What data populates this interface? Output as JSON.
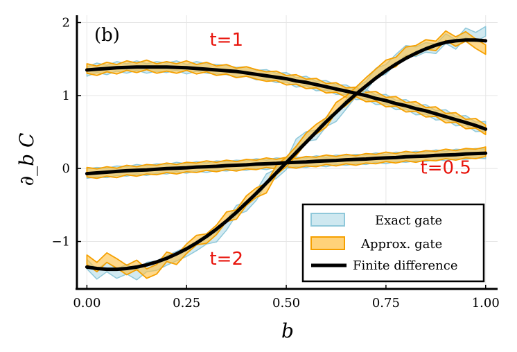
{
  "chart_data": {
    "type": "line",
    "panel_label": "(b)",
    "xlabel": "b",
    "ylabel": "∂_b C",
    "xlim": [
      -0.025,
      1.03
    ],
    "ylim": [
      -1.65,
      2.1
    ],
    "x_ticks": [
      0,
      0.25,
      0.5,
      0.75,
      1.0
    ],
    "x_tick_labels": [
      "0.00",
      "0.25",
      "0.50",
      "0.75",
      "1.00"
    ],
    "y_ticks": [
      -1,
      0,
      1,
      2
    ],
    "y_tick_labels": [
      "−1",
      "0",
      "1",
      "2"
    ],
    "grid": true,
    "legend_position": "bottom-right",
    "colors": {
      "exact_fill": "#add8e6",
      "exact_line": "#8fc8da",
      "approx_fill": "#ffbf40",
      "approx_line": "#f5a000",
      "finite_line": "#000000",
      "annotation": "#e8140c"
    },
    "legend": [
      {
        "label": "Exact gate",
        "kind": "band-exact"
      },
      {
        "label": "Approx. gate",
        "kind": "band-approx"
      },
      {
        "label": "Finite difference",
        "kind": "line"
      }
    ],
    "annotations": [
      {
        "text": "t=1",
        "x": 0.35,
        "y": 1.68
      },
      {
        "text": "t=0.5",
        "x": 0.9,
        "y": -0.07
      },
      {
        "text": "t=2",
        "x": 0.35,
        "y": -1.32
      }
    ],
    "x": [
      0.0,
      0.025,
      0.05,
      0.075,
      0.1,
      0.125,
      0.15,
      0.175,
      0.2,
      0.225,
      0.25,
      0.275,
      0.3,
      0.325,
      0.35,
      0.375,
      0.4,
      0.425,
      0.45,
      0.475,
      0.5,
      0.525,
      0.55,
      0.575,
      0.6,
      0.625,
      0.65,
      0.675,
      0.7,
      0.725,
      0.75,
      0.775,
      0.8,
      0.825,
      0.85,
      0.875,
      0.9,
      0.925,
      0.95,
      0.975,
      1.0
    ],
    "series": [
      {
        "name": "t=1 Finite difference",
        "values": [
          1.35,
          1.36,
          1.37,
          1.38,
          1.385,
          1.39,
          1.39,
          1.39,
          1.39,
          1.385,
          1.38,
          1.37,
          1.36,
          1.35,
          1.34,
          1.33,
          1.31,
          1.29,
          1.27,
          1.25,
          1.23,
          1.2,
          1.18,
          1.15,
          1.12,
          1.09,
          1.06,
          1.03,
          1.0,
          0.96,
          0.93,
          0.89,
          0.86,
          0.82,
          0.79,
          0.75,
          0.71,
          0.67,
          0.63,
          0.59,
          0.54
        ]
      },
      {
        "name": "t=1 Exact gate",
        "values": [
          1.33,
          1.38,
          1.35,
          1.4,
          1.37,
          1.41,
          1.37,
          1.4,
          1.38,
          1.41,
          1.36,
          1.4,
          1.37,
          1.36,
          1.35,
          1.32,
          1.33,
          1.28,
          1.29,
          1.24,
          1.25,
          1.18,
          1.2,
          1.13,
          1.14,
          1.08,
          1.08,
          1.01,
          1.02,
          0.94,
          0.95,
          0.87,
          0.88,
          0.8,
          0.81,
          0.73,
          0.74,
          0.65,
          0.66,
          0.57,
          0.58
        ]
      },
      {
        "name": "t=1 Approx. gate",
        "values": [
          1.37,
          1.34,
          1.39,
          1.36,
          1.41,
          1.38,
          1.42,
          1.37,
          1.4,
          1.37,
          1.41,
          1.36,
          1.39,
          1.34,
          1.36,
          1.31,
          1.33,
          1.29,
          1.26,
          1.27,
          1.21,
          1.22,
          1.16,
          1.17,
          1.1,
          1.11,
          1.04,
          1.05,
          0.98,
          0.99,
          0.91,
          0.92,
          0.84,
          0.85,
          0.77,
          0.78,
          0.69,
          0.7,
          0.61,
          0.62,
          0.53
        ]
      },
      {
        "name": "t=0.5 Finite difference",
        "values": [
          -0.07,
          -0.06,
          -0.05,
          -0.04,
          -0.03,
          -0.025,
          -0.02,
          -0.01,
          0.0,
          0.005,
          0.01,
          0.02,
          0.025,
          0.03,
          0.04,
          0.045,
          0.05,
          0.06,
          0.065,
          0.07,
          0.08,
          0.085,
          0.09,
          0.1,
          0.105,
          0.11,
          0.12,
          0.125,
          0.13,
          0.14,
          0.145,
          0.15,
          0.16,
          0.165,
          0.17,
          0.18,
          0.185,
          0.19,
          0.2,
          0.205,
          0.21
        ]
      },
      {
        "name": "t=0.5 Exact gate",
        "values": [
          -0.07,
          -0.05,
          -0.06,
          -0.03,
          -0.04,
          -0.01,
          -0.03,
          0.0,
          -0.01,
          0.02,
          0.0,
          0.03,
          0.01,
          0.04,
          0.03,
          0.05,
          0.04,
          0.07,
          0.05,
          0.08,
          0.07,
          0.09,
          0.08,
          0.11,
          0.09,
          0.12,
          0.11,
          0.13,
          0.12,
          0.15,
          0.13,
          0.16,
          0.15,
          0.17,
          0.16,
          0.19,
          0.17,
          0.2,
          0.19,
          0.21,
          0.2
        ]
      },
      {
        "name": "t=0.5 Approx. gate",
        "values": [
          -0.05,
          -0.07,
          -0.04,
          -0.06,
          -0.02,
          -0.04,
          -0.01,
          -0.02,
          0.01,
          -0.01,
          0.02,
          0.01,
          0.04,
          0.02,
          0.05,
          0.03,
          0.06,
          0.05,
          0.08,
          0.06,
          0.09,
          0.07,
          0.1,
          0.09,
          0.12,
          0.1,
          0.13,
          0.11,
          0.14,
          0.13,
          0.16,
          0.14,
          0.17,
          0.15,
          0.18,
          0.17,
          0.2,
          0.18,
          0.21,
          0.2,
          0.23
        ]
      },
      {
        "name": "t=2 Finite difference",
        "values": [
          -1.35,
          -1.37,
          -1.38,
          -1.38,
          -1.37,
          -1.35,
          -1.32,
          -1.28,
          -1.23,
          -1.17,
          -1.1,
          -1.02,
          -0.93,
          -0.83,
          -0.72,
          -0.6,
          -0.47,
          -0.34,
          -0.2,
          -0.06,
          0.08,
          0.22,
          0.36,
          0.5,
          0.64,
          0.77,
          0.9,
          1.02,
          1.13,
          1.24,
          1.34,
          1.43,
          1.51,
          1.58,
          1.64,
          1.69,
          1.73,
          1.75,
          1.76,
          1.76,
          1.75
        ]
      },
      {
        "name": "t=2 Exact gate",
        "values": [
          -1.31,
          -1.45,
          -1.35,
          -1.44,
          -1.38,
          -1.46,
          -1.35,
          -1.33,
          -1.26,
          -1.2,
          -1.14,
          -1.06,
          -0.97,
          -0.94,
          -0.78,
          -0.57,
          -0.52,
          -0.37,
          -0.14,
          -0.07,
          0.05,
          0.34,
          0.44,
          0.46,
          0.64,
          0.71,
          0.88,
          1.05,
          1.13,
          1.31,
          1.36,
          1.5,
          1.62,
          1.6,
          1.66,
          1.64,
          1.78,
          1.7,
          1.86,
          1.8,
          1.88
        ]
      },
      {
        "name": "t=2 Approx. gate",
        "values": [
          -1.25,
          -1.35,
          -1.22,
          -1.3,
          -1.39,
          -1.32,
          -1.44,
          -1.38,
          -1.21,
          -1.25,
          -1.1,
          -0.98,
          -0.96,
          -0.84,
          -0.66,
          -0.63,
          -0.44,
          -0.33,
          -0.27,
          -0.02,
          0.09,
          0.24,
          0.42,
          0.54,
          0.63,
          0.84,
          0.93,
          1.05,
          1.18,
          1.3,
          1.42,
          1.46,
          1.6,
          1.62,
          1.7,
          1.68,
          1.82,
          1.74,
          1.81,
          1.71,
          1.63
        ]
      }
    ]
  }
}
